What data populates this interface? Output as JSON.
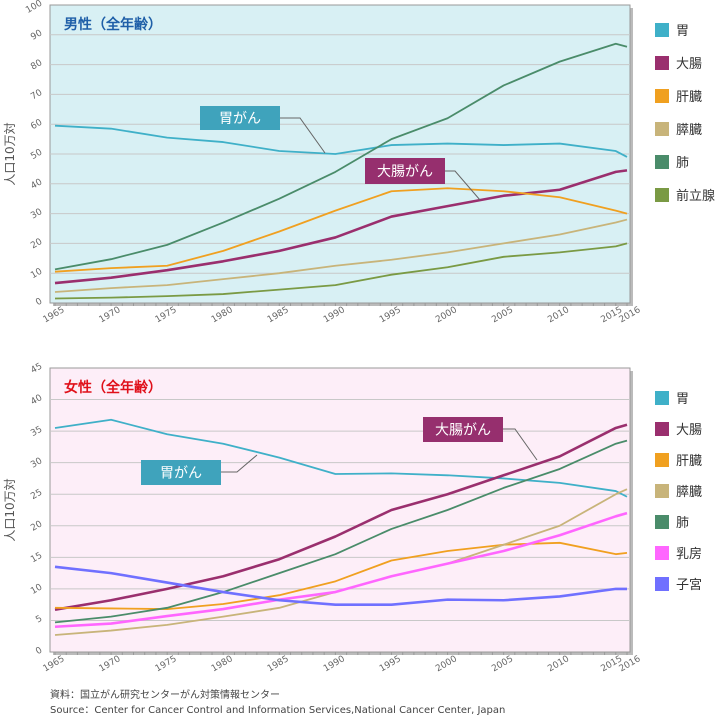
{
  "chart_data": [
    {
      "type": "line",
      "title": "男性（全年齢）",
      "title_color": "#1f5fa8",
      "background": "#d8f0f4",
      "ylabel": "人口10万対",
      "ylim": [
        0,
        100
      ],
      "yticks": [
        0,
        10,
        20,
        30,
        40,
        50,
        60,
        70,
        80,
        90,
        100
      ],
      "xticks": [
        "1965",
        "1970",
        "1975",
        "1980",
        "1985",
        "1990",
        "1995",
        "2000",
        "2005",
        "2010",
        "2015",
        "2016"
      ],
      "x": [
        1965,
        1970,
        1975,
        1980,
        1985,
        1990,
        1995,
        2000,
        2005,
        2010,
        2015,
        2016
      ],
      "grid": true,
      "legend_position": "right",
      "series": [
        {
          "name": "胃",
          "color": "#3fb0c8",
          "values": [
            59.5,
            58.5,
            55.5,
            54,
            51,
            50,
            53,
            53.5,
            53,
            53.5,
            51,
            49
          ]
        },
        {
          "name": "大腸",
          "color": "#9a2f6e",
          "values": [
            6.7,
            8.5,
            11,
            14,
            17.5,
            22,
            29,
            32.5,
            36,
            38,
            44,
            44.5
          ]
        },
        {
          "name": "肝臓",
          "color": "#f0a020",
          "values": [
            10.5,
            11.7,
            12.5,
            17.5,
            24,
            31,
            37.5,
            38.5,
            37.5,
            35.5,
            31,
            30
          ]
        },
        {
          "name": "膵臓",
          "color": "#c8b47a",
          "values": [
            3.7,
            5,
            6,
            8,
            10,
            12.5,
            14.5,
            17,
            20,
            23,
            27,
            28
          ]
        },
        {
          "name": "肺",
          "color": "#4a8c6a",
          "values": [
            11.3,
            14.7,
            19.5,
            27,
            35,
            44,
            55,
            62,
            73,
            81,
            87,
            86
          ]
        },
        {
          "name": "前立腺",
          "color": "#7a9a44",
          "values": [
            1.5,
            1.8,
            2.3,
            3,
            4.5,
            6,
            9.5,
            12,
            15.5,
            17,
            19,
            20
          ]
        }
      ],
      "annotations": [
        {
          "text": "胃がん",
          "color": "#3fa3bc"
        },
        {
          "text": "大腸がん",
          "color": "#962f6e"
        }
      ]
    },
    {
      "type": "line",
      "title": "女性（全年齢）",
      "title_color": "#e0101a",
      "background": "#fdeef8",
      "ylabel": "人口10万対",
      "ylim": [
        0,
        45
      ],
      "yticks": [
        0,
        5,
        10,
        15,
        20,
        25,
        30,
        35,
        40,
        45
      ],
      "xticks": [
        "1965",
        "1970",
        "1975",
        "1980",
        "1985",
        "1990",
        "1995",
        "2000",
        "2005",
        "2010",
        "2015",
        "2016"
      ],
      "x": [
        1965,
        1970,
        1975,
        1980,
        1985,
        1990,
        1995,
        2000,
        2005,
        2010,
        2015,
        2016
      ],
      "grid": true,
      "legend_position": "right",
      "series": [
        {
          "name": "胃",
          "color": "#3fb0c8",
          "values": [
            35.5,
            36.8,
            34.5,
            33,
            30.8,
            28.2,
            28.3,
            28,
            27.5,
            26.8,
            25.5,
            24.6
          ]
        },
        {
          "name": "大腸",
          "color": "#9a2f6e",
          "values": [
            6.7,
            8.2,
            10,
            12,
            14.7,
            18.3,
            22.5,
            25,
            28,
            31,
            35.5,
            36
          ]
        },
        {
          "name": "肝臓",
          "color": "#f0a020",
          "values": [
            7,
            6.9,
            6.8,
            7.6,
            9,
            11.2,
            14.5,
            16,
            17,
            17.3,
            15.5,
            15.7
          ]
        },
        {
          "name": "膵臓",
          "color": "#c8b47a",
          "values": [
            2.7,
            3.4,
            4.3,
            5.6,
            7,
            9.5,
            12,
            14,
            17,
            20,
            25,
            25.8
          ]
        },
        {
          "name": "肺",
          "color": "#4a8c6a",
          "values": [
            4.7,
            5.6,
            7,
            9.5,
            12.5,
            15.5,
            19.5,
            22.5,
            26,
            29,
            33,
            33.5
          ]
        },
        {
          "name": "乳房",
          "color": "#ff66ff",
          "values": [
            4,
            4.5,
            5.7,
            6.8,
            8.3,
            9.5,
            12,
            14,
            16,
            18.5,
            21.5,
            22
          ]
        },
        {
          "name": "子宮",
          "color": "#7070ff",
          "values": [
            13.5,
            12.5,
            11,
            9.5,
            8.2,
            7.5,
            7.5,
            8.3,
            8.2,
            8.8,
            10,
            10
          ]
        }
      ],
      "annotations": [
        {
          "text": "胃がん",
          "color": "#3fa3bc"
        },
        {
          "text": "大腸がん",
          "color": "#962f6e"
        }
      ]
    }
  ],
  "source": {
    "ja": "資料：国立がん研究センターがん対策情報センター",
    "en": "Source：Center for Cancer Control and Information Services,National Cancer Center, Japan"
  }
}
